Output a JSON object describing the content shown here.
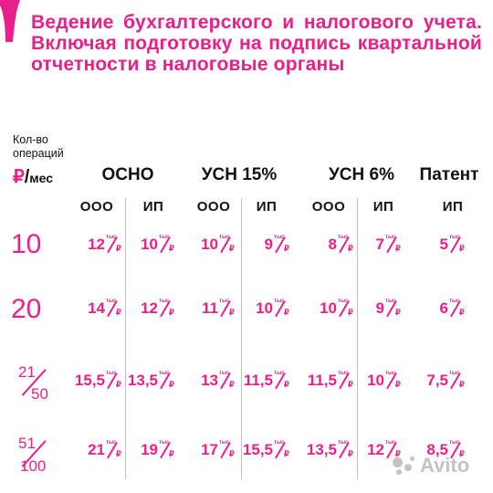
{
  "colors": {
    "accent": "#e8208a",
    "text": "#111111",
    "divider": "#bfbfbf",
    "watermark": "#b9b9b9"
  },
  "title": "Ведение бухгалтерского и налогового учета. Включая подготовку на подпись квартальной отчетности в налоговые органы",
  "header": {
    "ylabel_line1": "Кол-во",
    "ylabel_line2": "операций",
    "unit_rub": "₽",
    "unit_slash": "/",
    "unit_mes": "мес",
    "groups": [
      "ОСНО",
      "УСН 15%",
      "УСН 6%",
      "Патент"
    ],
    "subs": [
      "ООО",
      "ИП",
      "ООО",
      "ИП",
      "ООО",
      "ИП",
      "ИП"
    ]
  },
  "cell_unit": {
    "small": "тыс",
    "currency": "₽"
  },
  "rows": [
    {
      "label": "10",
      "values": [
        "12",
        "10",
        "10",
        "9",
        "8",
        "7",
        "5"
      ]
    },
    {
      "label": "20",
      "values": [
        "14",
        "12",
        "11",
        "10",
        "10",
        "9",
        "6"
      ]
    },
    {
      "label_num": "21",
      "label_den": "50",
      "values": [
        "15,5",
        "13,5",
        "13",
        "11,5",
        "11,5",
        "10",
        "7,5"
      ]
    },
    {
      "label_num": "51",
      "label_den": "100",
      "values": [
        "21",
        "19",
        "17",
        "15,5",
        "13,5",
        "12",
        "8,5"
      ]
    }
  ],
  "watermark": {
    "icon": "avito-dots-icon",
    "text": "Avito"
  }
}
